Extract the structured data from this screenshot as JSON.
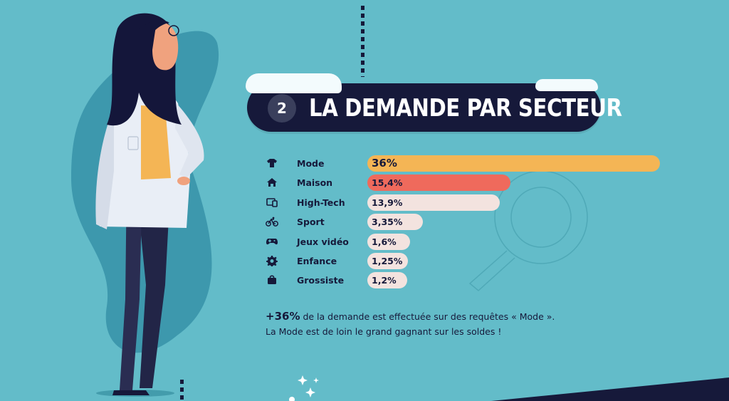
{
  "header": {
    "section_number": "2",
    "title": "LA DEMANDE PAR SECTEUR"
  },
  "chart_data": {
    "type": "bar",
    "orientation": "horizontal",
    "categories": [
      "Mode",
      "Maison",
      "High-Tech",
      "Sport",
      "Jeux vidéo",
      "Enfance",
      "Grossiste"
    ],
    "values": [
      36,
      15.4,
      13.9,
      3.35,
      1.6,
      1.25,
      1.2
    ],
    "value_labels": [
      "36%",
      "15,4%",
      "13,9%",
      "3,35%",
      "1,6%",
      "1,25%",
      "1,2%"
    ],
    "unit": "%",
    "bar_colors": [
      "#f4b555",
      "#ef6a5c",
      "#f3e3df",
      "#f3e3df",
      "#f3e3df",
      "#f3e3df",
      "#f3e3df"
    ],
    "icons": [
      "tshirt-icon",
      "house-icon",
      "devices-icon",
      "bicycle-icon",
      "gamepad-icon",
      "gear-icon",
      "bag-icon"
    ],
    "title": "LA DEMANDE PAR SECTEUR",
    "xlabel": "",
    "ylabel": "",
    "grid": false,
    "legend": "none"
  },
  "footnote": {
    "highlight": "+36%",
    "line1_rest": " de la demande est effectuée sur des requêtes « Mode ».",
    "line2": "La Mode est de loin le grand gagnant sur les soldes !"
  },
  "colors": {
    "background": "#63bcc9",
    "navy": "#16193a",
    "accent_orange": "#f4b555",
    "accent_red": "#ef6a5c",
    "bar_neutral": "#f3e3df"
  }
}
